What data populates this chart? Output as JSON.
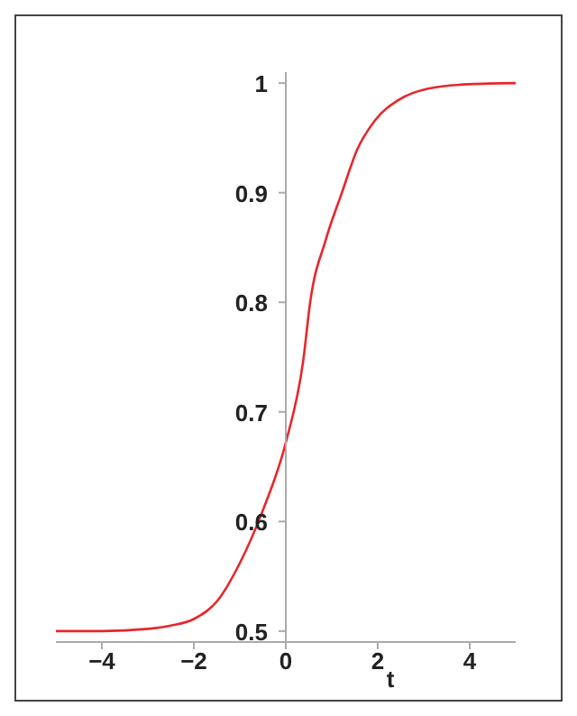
{
  "chart_data": {
    "type": "line",
    "xlabel": "t",
    "x": [
      -5,
      -4,
      -3,
      -2.5,
      -2,
      -1.5,
      -1,
      -0.5,
      0,
      0.38,
      0.53,
      0.87,
      1.22,
      1.55,
      1.94,
      2.47,
      3.1,
      4,
      5
    ],
    "series": [
      {
        "color": "#e8262b",
        "values": [
          0.5,
          0.5,
          0.502,
          0.505,
          0.511,
          0.527,
          0.562,
          0.61,
          0.672,
          0.747,
          0.8,
          0.857,
          0.9,
          0.939,
          0.966,
          0.985,
          0.995,
          0.999,
          1.0
        ]
      }
    ],
    "xlim": [
      -5,
      5
    ],
    "ylim": [
      0.49,
      1.01
    ],
    "xticks": [
      {
        "value": -4,
        "label": "−4"
      },
      {
        "value": -2,
        "label": "−2"
      },
      0,
      2,
      4
    ],
    "yticks": [
      0.5,
      0.6,
      0.7,
      0.8,
      0.9,
      1
    ],
    "grid": false,
    "legend": false,
    "marker": "none",
    "line_style": "solid"
  }
}
